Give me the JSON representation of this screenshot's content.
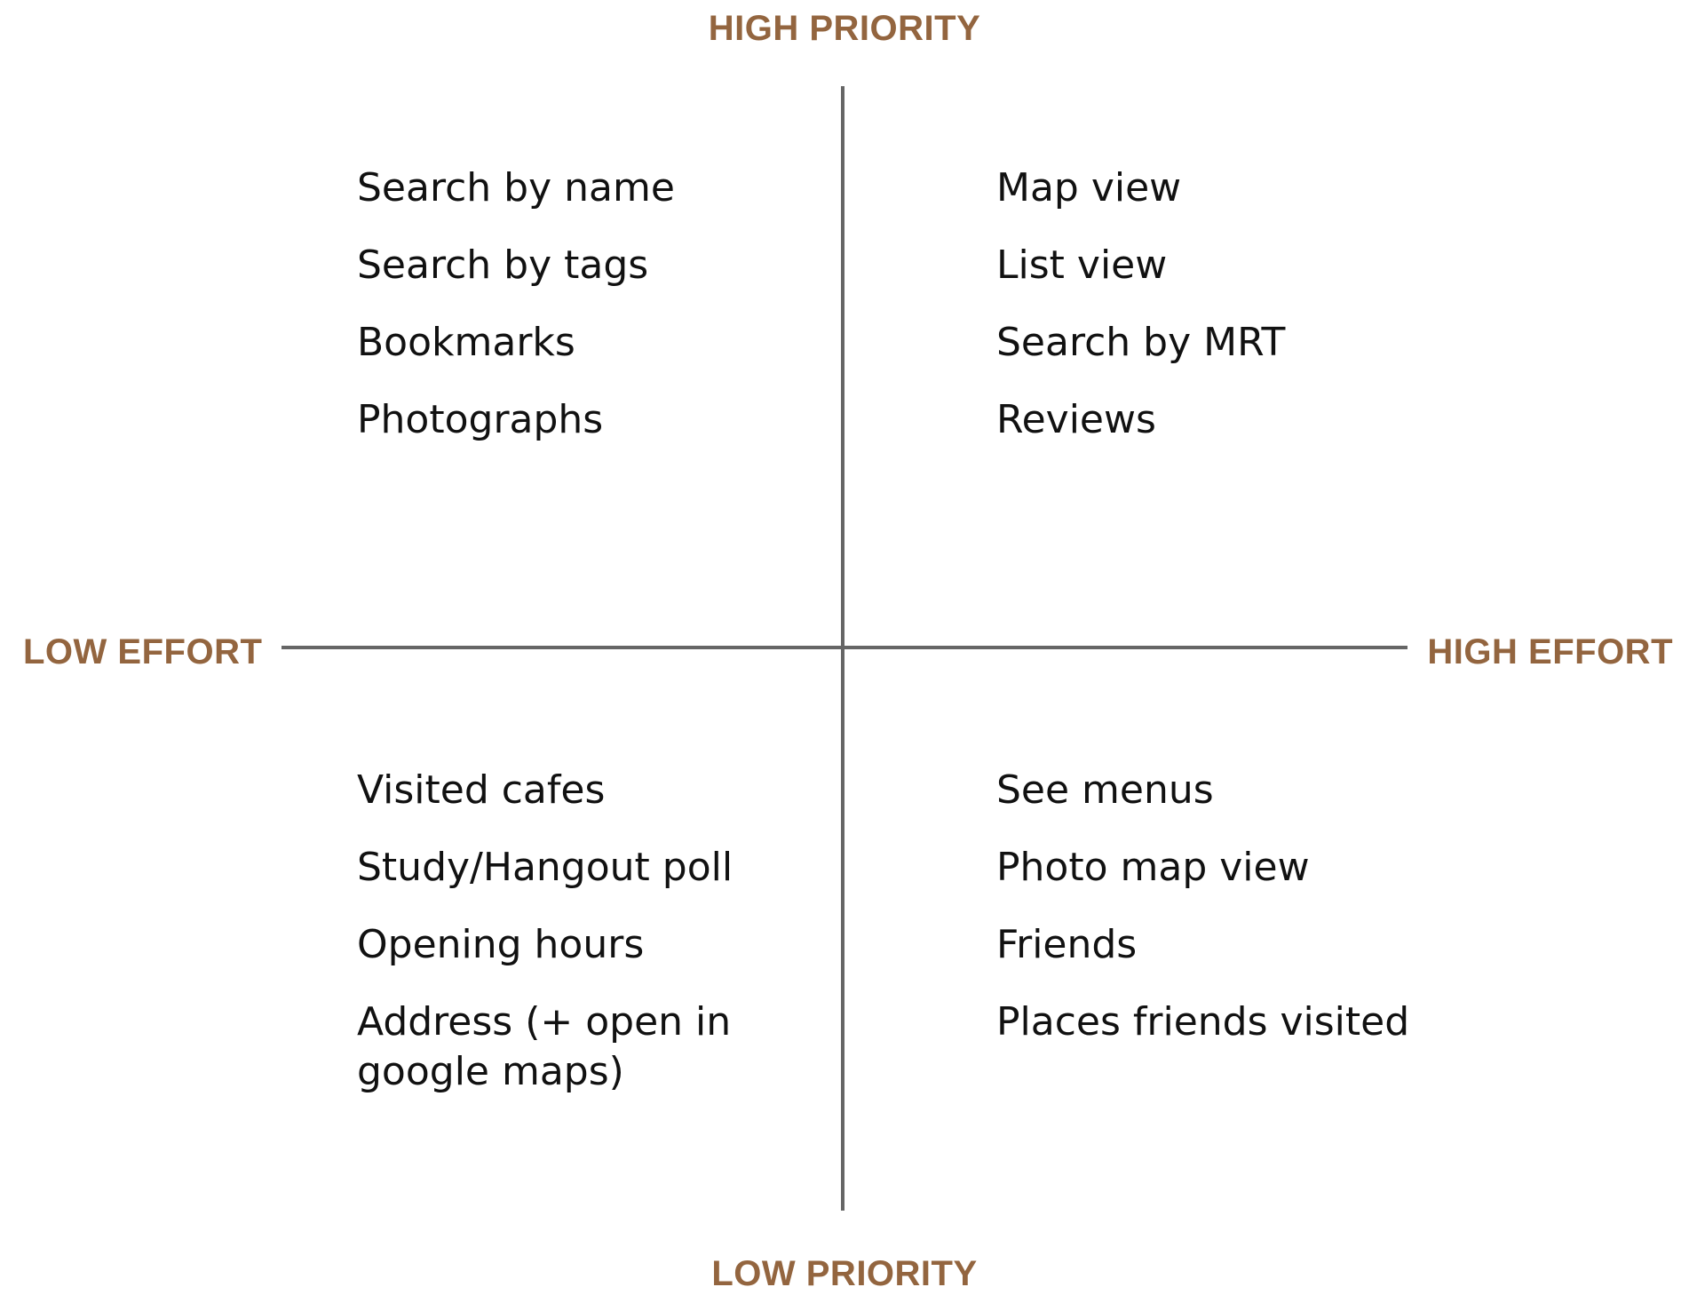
{
  "colors": {
    "axis_label": "#93653f",
    "axis_line": "#666666",
    "item_text": "#111111"
  },
  "axes": {
    "top": "HIGH PRIORITY",
    "bottom": "LOW PRIORITY",
    "left": "LOW EFFORT",
    "right": "HIGH EFFORT"
  },
  "quadrants": {
    "top_left": {
      "items": [
        "Search by name",
        "Search by tags",
        "Bookmarks",
        "Photographs"
      ]
    },
    "top_right": {
      "items": [
        "Map view",
        "List view",
        "Search by MRT",
        "Reviews"
      ]
    },
    "bottom_left": {
      "items": [
        "Visited cafes",
        "Study/Hangout poll",
        "Opening hours",
        "Address (+ open in google maps)"
      ]
    },
    "bottom_right": {
      "items": [
        "See menus",
        "Photo map view",
        "Friends",
        "Places friends visited"
      ]
    }
  }
}
